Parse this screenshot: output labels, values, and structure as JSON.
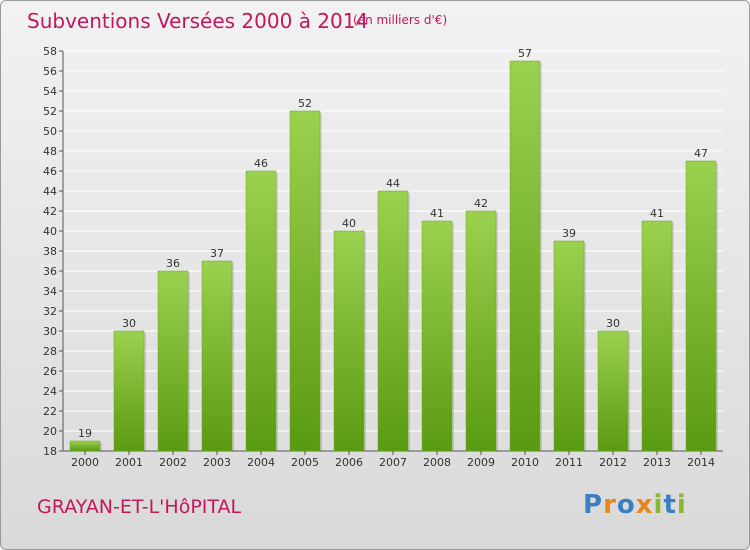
{
  "title": "Subventions Versées 2000 à 2014",
  "subtitle": "(en milliers d'€)",
  "commune": "GRAYAN-ET-L'HôPITAL",
  "logo": {
    "letters": [
      "P",
      "r",
      "o",
      "x",
      "i",
      "t",
      "i"
    ],
    "colors": [
      "#3a7fc4",
      "#e8861a",
      "#3a7fc4",
      "#e8861a",
      "#8ab833",
      "#3a7fc4",
      "#8ab833"
    ]
  },
  "colors": {
    "bar_top": "#9bd14f",
    "bar_bottom": "#5a9a12",
    "title": "#c2185b"
  },
  "chart_data": {
    "type": "bar",
    "categories": [
      "2000",
      "2001",
      "2002",
      "2003",
      "2004",
      "2005",
      "2006",
      "2007",
      "2008",
      "2009",
      "2010",
      "2011",
      "2012",
      "2013",
      "2014"
    ],
    "values": [
      19,
      30,
      36,
      37,
      46,
      52,
      40,
      44,
      41,
      42,
      57,
      39,
      30,
      41,
      47
    ],
    "ylim": [
      18,
      58
    ],
    "yticks": [
      18,
      20,
      22,
      24,
      26,
      28,
      30,
      32,
      34,
      36,
      38,
      40,
      42,
      44,
      46,
      48,
      50,
      52,
      54,
      56,
      58
    ],
    "grid": true,
    "xlabel": "",
    "ylabel": ""
  }
}
